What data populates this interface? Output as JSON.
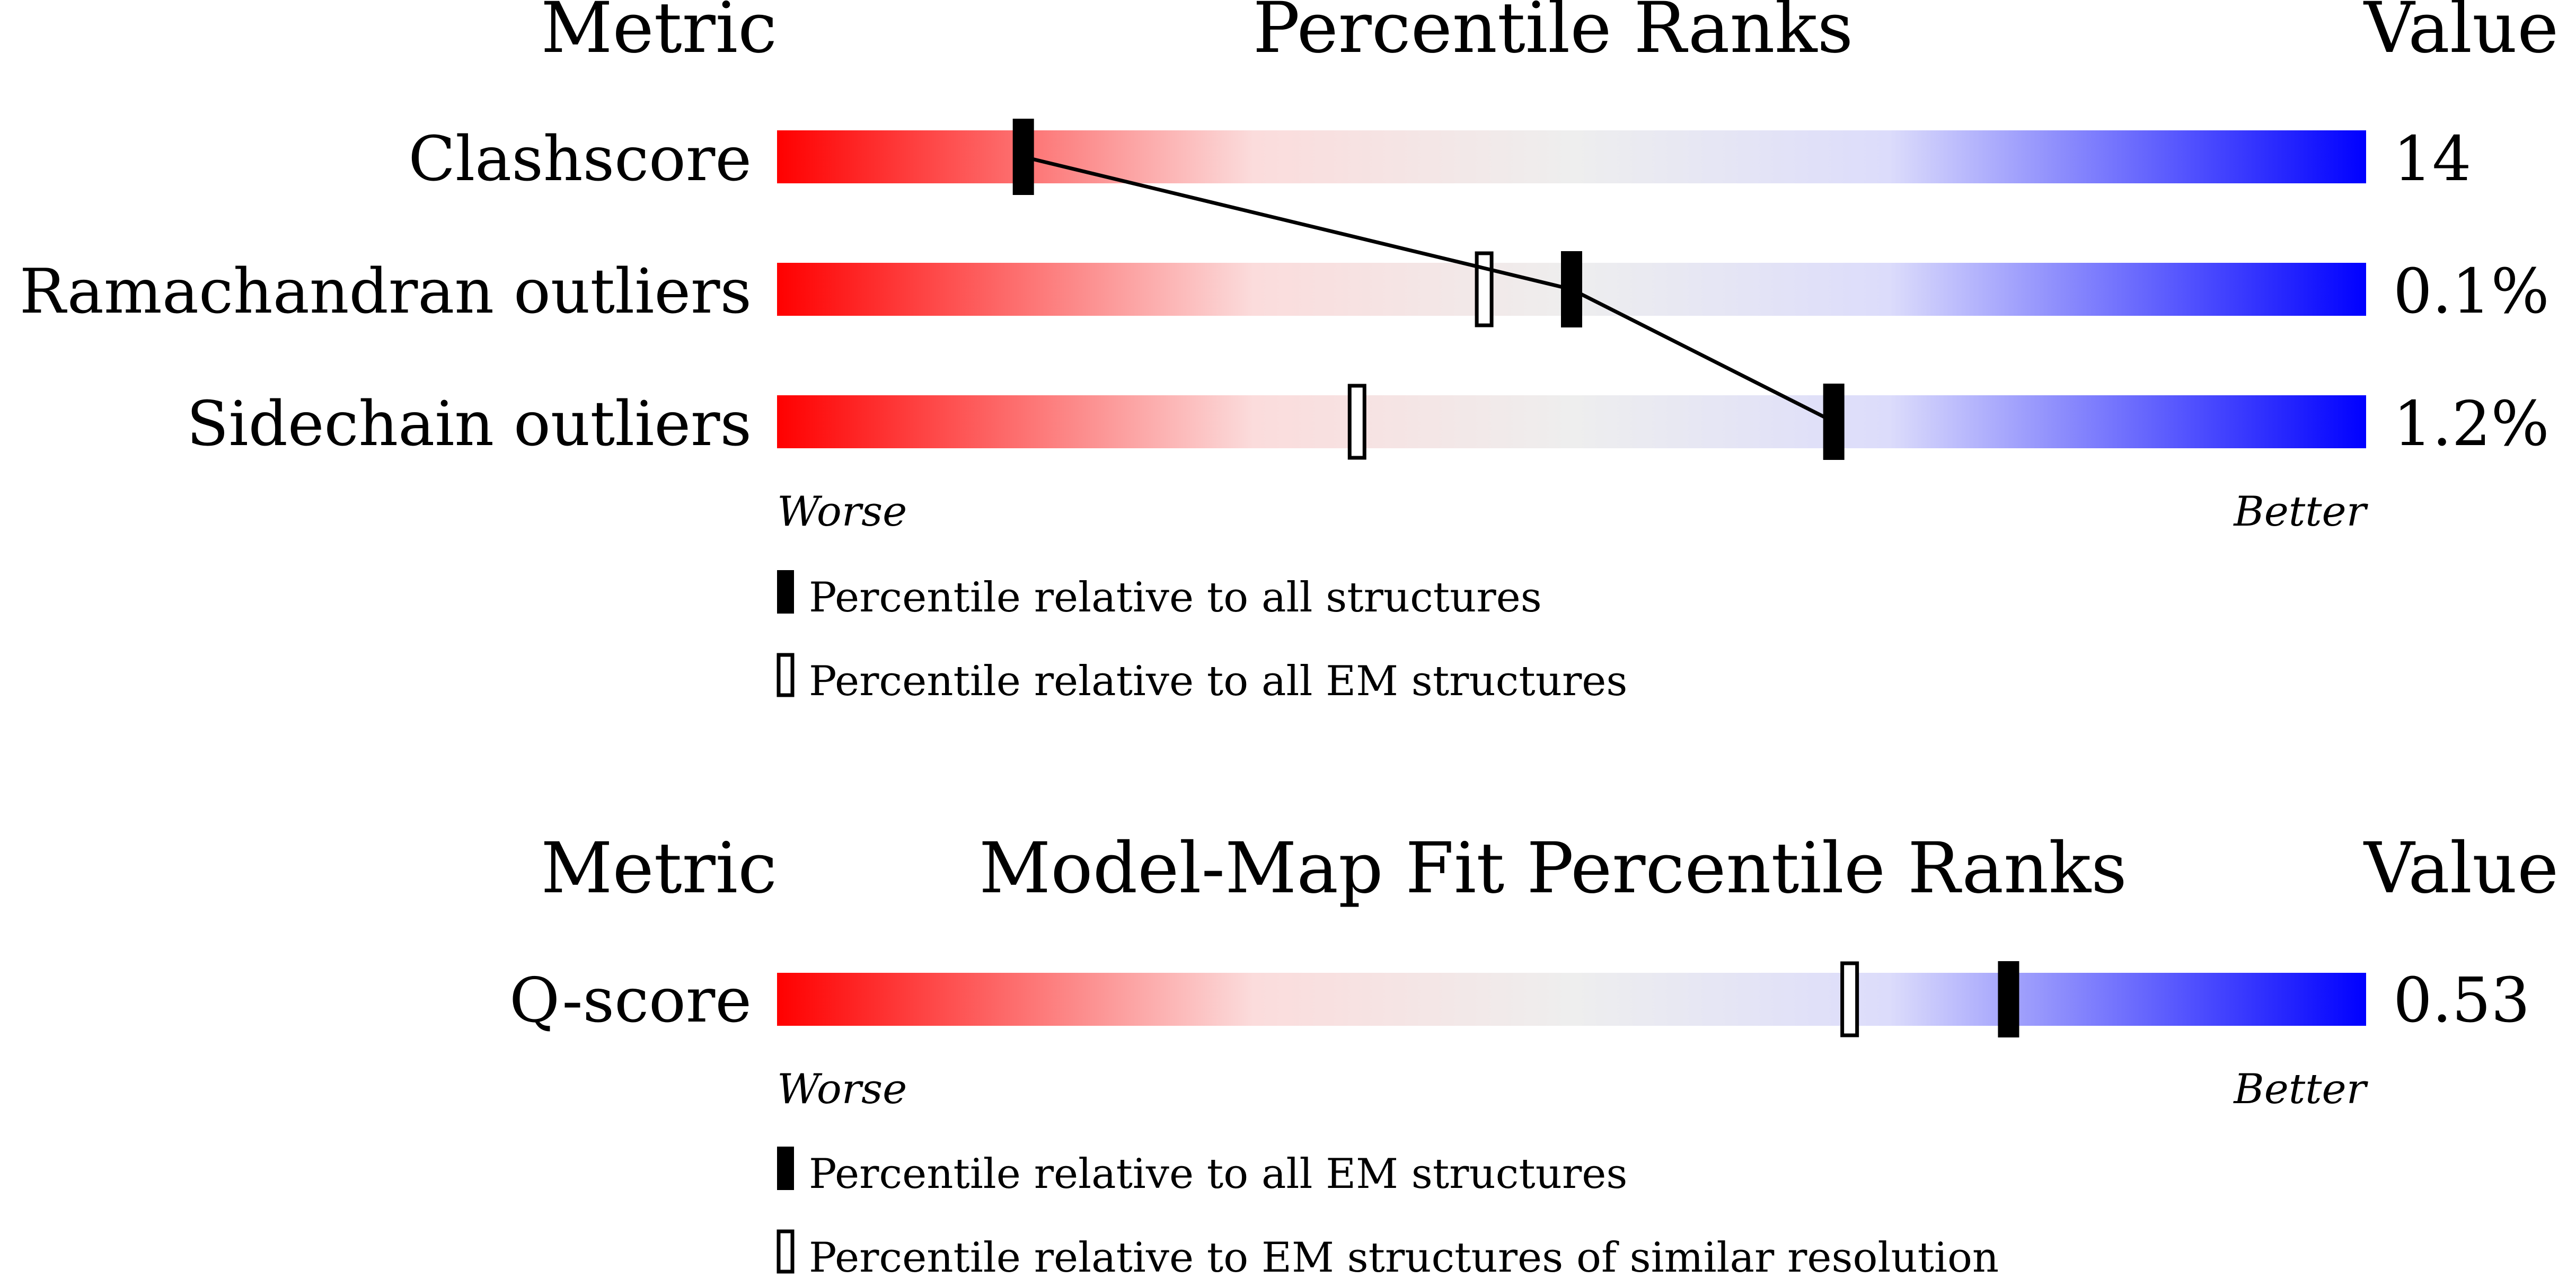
{
  "chart_data": [
    {
      "type": "bar",
      "header": {
        "metric": "Metric",
        "title": "Percentile Ranks",
        "value": "Value"
      },
      "rows": [
        {
          "label": "Clashscore",
          "value": "14",
          "pct_all": 15.5,
          "pct_em": null
        },
        {
          "label": "Ramachandran outliers",
          "value": "0.1%",
          "pct_all": 50,
          "pct_em": 44.5
        },
        {
          "label": "Sidechain outliers",
          "value": "1.2%",
          "pct_all": 66.5,
          "pct_em": 36.5
        }
      ],
      "worse_label": "Worse",
      "better_label": "Better",
      "legend": [
        {
          "marker": "filled",
          "text": "Percentile relative to all structures"
        },
        {
          "marker": "open",
          "text": "Percentile relative to all EM structures"
        }
      ]
    },
    {
      "type": "bar",
      "header": {
        "metric": "Metric",
        "title": "Model-Map Fit Percentile Ranks",
        "value": "Value"
      },
      "rows": [
        {
          "label": "Q-score",
          "value": "0.53",
          "pct_all": 77.5,
          "pct_em": 67.5
        }
      ],
      "worse_label": "Worse",
      "better_label": "Better",
      "legend": [
        {
          "marker": "filled",
          "text": "Percentile relative to all EM structures"
        },
        {
          "marker": "open",
          "text": "Percentile relative to EM structures of similar resolution"
        }
      ]
    }
  ],
  "colors": {
    "worse": "#ff0000",
    "mid": "#eeeeee",
    "better": "#0000ff",
    "marker": "#000000"
  }
}
